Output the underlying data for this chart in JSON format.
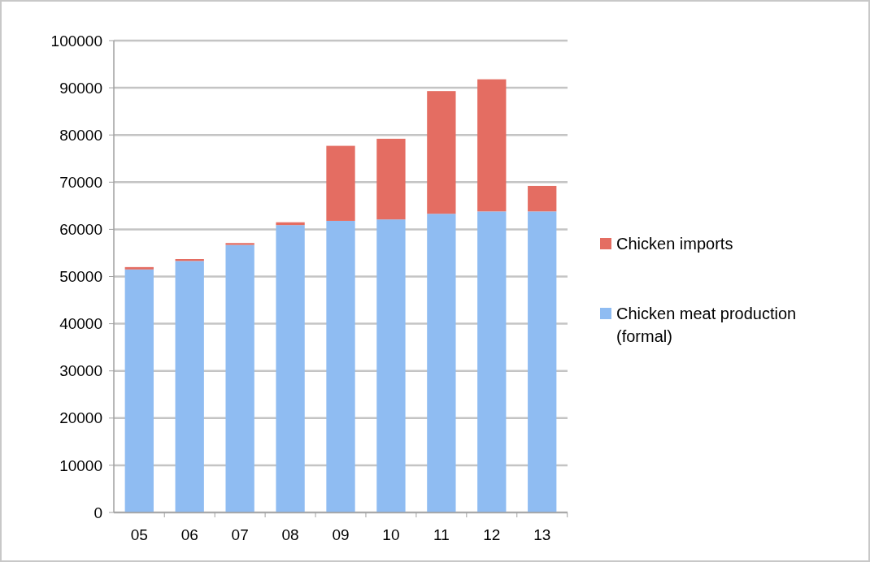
{
  "chart_data": {
    "type": "bar",
    "stacked": true,
    "categories": [
      "05",
      "06",
      "07",
      "08",
      "09",
      "10",
      "11",
      "12",
      "13"
    ],
    "series": [
      {
        "name": "Chicken meat production (formal)",
        "color": "#8fbcf2",
        "values": [
          51500,
          53300,
          56700,
          60900,
          61800,
          62100,
          63300,
          63800,
          63800
        ]
      },
      {
        "name": "Chicken imports",
        "color": "#e46d62",
        "values": [
          500,
          400,
          400,
          600,
          15900,
          17100,
          26000,
          28000,
          5400
        ]
      }
    ],
    "ylim": [
      0,
      100000
    ],
    "yticks": [
      0,
      10000,
      20000,
      30000,
      40000,
      50000,
      60000,
      70000,
      80000,
      90000,
      100000
    ],
    "grid": "y",
    "legend": "right"
  }
}
